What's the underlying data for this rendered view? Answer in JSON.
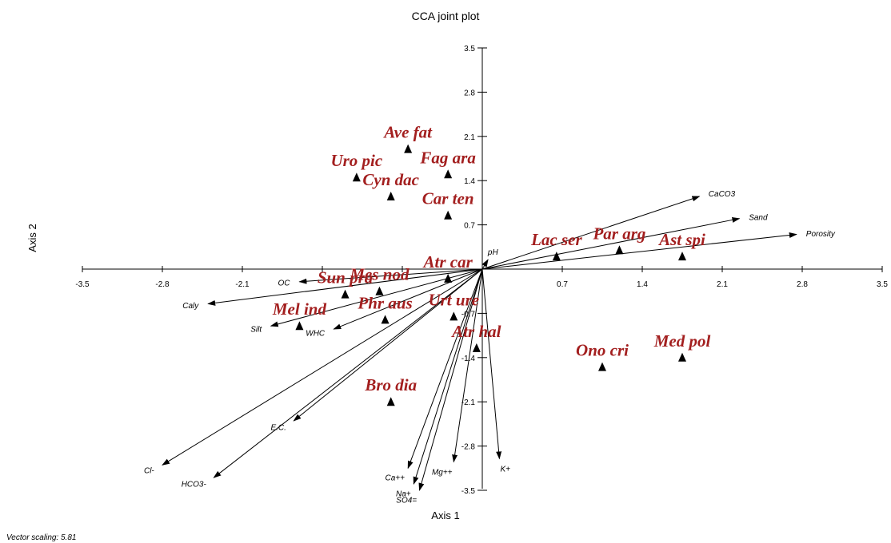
{
  "chart_data": {
    "type": "scatter",
    "title": "CCA joint plot",
    "xlabel": "Axis 1",
    "ylabel": "Axis 2",
    "xlim": [
      -3.5,
      3.5
    ],
    "ylim": [
      -3.5,
      3.5
    ],
    "x_ticks": [
      -3.5,
      -2.8,
      -2.1,
      -1.4,
      -0.7,
      0.7,
      1.4,
      2.1,
      2.8,
      3.5
    ],
    "x_tick_labels": [
      "-3.5",
      "-2.8",
      "-2.1",
      "",
      "",
      "0.7",
      "1.4",
      "2.1",
      "2.8",
      "3.5"
    ],
    "y_ticks": [
      3.5,
      2.8,
      2.1,
      1.4,
      0.7,
      -0.7,
      -1.4,
      -2.1,
      -2.8,
      -3.5
    ],
    "y_tick_labels": [
      "3.5",
      "2.8",
      "2.1",
      "1.4",
      "0.7",
      "-0.7",
      "-1.4",
      "-2.1",
      "-2.8",
      "-3.5"
    ],
    "species": [
      {
        "label": "Ave fat",
        "x": -0.65,
        "y": 1.9
      },
      {
        "label": "Uro pic",
        "x": -1.1,
        "y": 1.45
      },
      {
        "label": "Fag ara",
        "x": -0.3,
        "y": 1.5
      },
      {
        "label": "Cyn dac",
        "x": -0.8,
        "y": 1.15
      },
      {
        "label": "Car ten",
        "x": -0.3,
        "y": 0.85
      },
      {
        "label": "Lac ser",
        "x": 0.65,
        "y": 0.2
      },
      {
        "label": "Par arg",
        "x": 1.2,
        "y": 0.3
      },
      {
        "label": "Ast spi",
        "x": 1.75,
        "y": 0.2
      },
      {
        "label": "Atr car",
        "x": -0.3,
        "y": -0.15
      },
      {
        "label": "Sun pra",
        "x": -1.2,
        "y": -0.4
      },
      {
        "label": "Mes nod",
        "x": -0.9,
        "y": -0.35
      },
      {
        "label": "Mel ind",
        "x": -1.6,
        "y": -0.9
      },
      {
        "label": "Phr aus",
        "x": -0.85,
        "y": -0.8
      },
      {
        "label": "Urt ure",
        "x": -0.25,
        "y": -0.75
      },
      {
        "label": "Atr hal",
        "x": -0.05,
        "y": -1.25
      },
      {
        "label": "Ono cri",
        "x": 1.05,
        "y": -1.55
      },
      {
        "label": "Med pol",
        "x": 1.75,
        "y": -1.4
      },
      {
        "label": "Bro dia",
        "x": -0.8,
        "y": -2.1
      }
    ],
    "vectors": [
      {
        "label": "CaCO3",
        "x": 1.9,
        "y": 1.15
      },
      {
        "label": "Sand",
        "x": 2.25,
        "y": 0.8
      },
      {
        "label": "Porosity",
        "x": 2.75,
        "y": 0.55
      },
      {
        "label": "pH",
        "x": 0.05,
        "y": 0.15
      },
      {
        "label": "OC",
        "x": -1.6,
        "y": -0.2
      },
      {
        "label": "Caly",
        "x": -2.4,
        "y": -0.55
      },
      {
        "label": "Silt",
        "x": -1.85,
        "y": -0.9
      },
      {
        "label": "WHC",
        "x": -1.3,
        "y": -0.95
      },
      {
        "label": "E.C.",
        "x": -1.65,
        "y": -2.4
      },
      {
        "label": "Cl-",
        "x": -2.8,
        "y": -3.1
      },
      {
        "label": "HCO3-",
        "x": -2.35,
        "y": -3.3
      },
      {
        "label": "Ca++",
        "x": -0.65,
        "y": -3.15
      },
      {
        "label": "Na+",
        "x": -0.6,
        "y": -3.4
      },
      {
        "label": "SO4=",
        "x": -0.55,
        "y": -3.5
      },
      {
        "label": "Mg++",
        "x": -0.25,
        "y": -3.05
      },
      {
        "label": "K+",
        "x": 0.15,
        "y": -3.0
      }
    ],
    "footnote": "Vector scaling: 5.81"
  }
}
